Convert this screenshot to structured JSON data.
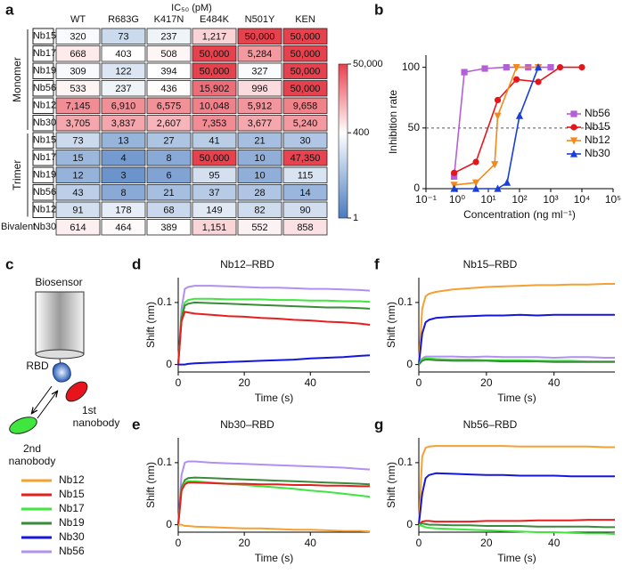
{
  "chart_data": [
    {
      "type": "heatmap",
      "panel_label": "a",
      "title": "IC₅₀ (pM)",
      "columns": [
        "WT",
        "R683G",
        "K417N",
        "E484K",
        "N501Y",
        "KEN"
      ],
      "row_labels": [
        "Nb15",
        "Nb17",
        "Nb19",
        "Nb56",
        "Nb12",
        "Nb30",
        "Nb15",
        "Nb17",
        "Nb19",
        "Nb56",
        "Nb12",
        "Nb30"
      ],
      "row_groups": [
        "Monomer",
        "Monomer",
        "Monomer",
        "Monomer",
        "Monomer",
        "Monomer",
        "Trimer",
        "Trimer",
        "Trimer",
        "Trimer",
        "Trimer",
        "Bivalent"
      ],
      "values": [
        [
          320,
          73,
          237,
          1217,
          50000,
          50000
        ],
        [
          668,
          403,
          508,
          50000,
          5284,
          50000
        ],
        [
          309,
          122,
          394,
          50000,
          327,
          50000
        ],
        [
          533,
          237,
          436,
          15902,
          996,
          50000
        ],
        [
          7145,
          6910,
          6575,
          10048,
          5912,
          9658
        ],
        [
          3705,
          3837,
          2607,
          7353,
          3677,
          5240
        ],
        [
          73,
          13,
          27,
          41,
          21,
          30
        ],
        [
          15,
          4,
          8,
          50000,
          10,
          47350
        ],
        [
          12,
          3,
          6,
          95,
          10,
          115
        ],
        [
          43,
          8,
          21,
          37,
          28,
          14
        ],
        [
          91,
          178,
          68,
          149,
          82,
          90
        ],
        [
          614,
          464,
          389,
          1151,
          552,
          858
        ]
      ],
      "value_labels": [
        [
          "320",
          "73",
          "237",
          "1,217",
          "50,000",
          "50,000"
        ],
        [
          "668",
          "403",
          "508",
          "50,000",
          "5,284",
          "50,000"
        ],
        [
          "309",
          "122",
          "394",
          "50,000",
          "327",
          "50,000"
        ],
        [
          "533",
          "237",
          "436",
          "15,902",
          "996",
          "50,000"
        ],
        [
          "7,145",
          "6,910",
          "6,575",
          "10,048",
          "5,912",
          "9,658"
        ],
        [
          "3,705",
          "3,837",
          "2,607",
          "7,353",
          "3,677",
          "5,240"
        ],
        [
          "73",
          "13",
          "27",
          "41",
          "21",
          "30"
        ],
        [
          "15",
          "4",
          "8",
          "50,000",
          "10",
          "47,350"
        ],
        [
          "12",
          "3",
          "6",
          "95",
          "10",
          "115"
        ],
        [
          "43",
          "8",
          "21",
          "37",
          "28",
          "14"
        ],
        [
          "91",
          "178",
          "68",
          "149",
          "82",
          "90"
        ],
        [
          "614",
          "464",
          "389",
          "1,151",
          "552",
          "858"
        ]
      ],
      "color_scale": {
        "log": true,
        "zlim": [
          1,
          50000
        ],
        "zcenter": 400,
        "colors": [
          "#4a7cc0",
          "#ffffff",
          "#e8414e"
        ],
        "ticks": [
          {
            "value": 50000,
            "label": "50,000"
          },
          400,
          1
        ]
      }
    },
    {
      "type": "line",
      "panel_label": "b",
      "xlabel": "Concentration (ng ml⁻¹)",
      "ylabel": "Inhibition rate",
      "xscale": "log",
      "xlim": [
        0.1,
        100000
      ],
      "ylim": [
        0,
        110
      ],
      "xticks": [
        {
          "value": 0.1,
          "label": "10⁻¹"
        },
        {
          "value": 1,
          "label": "10⁰"
        },
        {
          "value": 10,
          "label": "10¹"
        },
        {
          "value": 100,
          "label": "10²"
        },
        {
          "value": 1000,
          "label": "10³"
        },
        {
          "value": 10000,
          "label": "10⁴"
        },
        {
          "value": 100000,
          "label": "10⁵"
        }
      ],
      "yticks": [
        0,
        50,
        100
      ],
      "hline": 50,
      "legend": "right",
      "series": [
        {
          "name": "Nb56",
          "color": "#b35fd6",
          "marker": "square",
          "x": [
            0.8,
            1.7,
            7.7,
            38,
            190,
            1000
          ],
          "values": [
            10,
            96,
            99,
            100,
            100,
            100
          ]
        },
        {
          "name": "Nb15",
          "color": "#e4161c",
          "marker": "circle",
          "x": [
            0.8,
            4,
            20,
            80,
            400,
            2000,
            10000
          ],
          "values": [
            13,
            22,
            73,
            90,
            88,
            100,
            100
          ]
        },
        {
          "name": "Nb12",
          "color": "#f28a1a",
          "marker": "triangle-down",
          "x": [
            0.8,
            4,
            16,
            20,
            80,
            400
          ],
          "values": [
            3,
            5,
            20,
            60,
            100,
            100
          ]
        },
        {
          "name": "Nb30",
          "color": "#1a3fd6",
          "marker": "triangle-up",
          "x": [
            0.8,
            4,
            20,
            40,
            100,
            400
          ],
          "values": [
            0,
            0,
            0,
            5,
            60,
            100
          ]
        }
      ]
    },
    {
      "type": "line",
      "panel_label": "d",
      "title": "Nb12–RBD",
      "xlabel": "Time (s)",
      "ylabel": "Shift (nm)",
      "xlim": [
        0,
        58
      ],
      "ylim": [
        -0.012,
        0.14
      ],
      "xticks": [
        0,
        20,
        40
      ],
      "yticks": [
        0,
        0.1
      ],
      "x": [
        0,
        1,
        2,
        3,
        5,
        10,
        15,
        20,
        25,
        30,
        35,
        40,
        45,
        50,
        55,
        58
      ],
      "series": [
        {
          "name": "Nb56",
          "color": "#b090f0",
          "values": [
            0,
            0.09,
            0.122,
            0.125,
            0.127,
            0.127,
            0.126,
            0.125,
            0.124,
            0.124,
            0.123,
            0.122,
            0.122,
            0.121,
            0.12,
            0.119
          ]
        },
        {
          "name": "Nb17",
          "color": "#3ee63e",
          "values": [
            0,
            0.08,
            0.1,
            0.104,
            0.106,
            0.106,
            0.105,
            0.105,
            0.105,
            0.104,
            0.104,
            0.103,
            0.103,
            0.102,
            0.102,
            0.101
          ]
        },
        {
          "name": "Nb19",
          "color": "#3a8a3a",
          "values": [
            0,
            0.075,
            0.095,
            0.098,
            0.1,
            0.099,
            0.098,
            0.097,
            0.096,
            0.095,
            0.094,
            0.093,
            0.092,
            0.092,
            0.091,
            0.09
          ]
        },
        {
          "name": "Nb15",
          "color": "#e81e1e",
          "values": [
            0,
            0.07,
            0.085,
            0.084,
            0.082,
            0.08,
            0.078,
            0.077,
            0.075,
            0.074,
            0.072,
            0.071,
            0.069,
            0.068,
            0.066,
            0.064
          ]
        },
        {
          "name": "Nb30",
          "color": "#1515e0",
          "values": [
            0,
            0,
            0,
            0.001,
            0.002,
            0.003,
            0.004,
            0.005,
            0.006,
            0.007,
            0.008,
            0.01,
            0.011,
            0.012,
            0.014,
            0.015
          ]
        }
      ]
    },
    {
      "type": "line",
      "panel_label": "e",
      "title": "Nb30–RBD",
      "xlabel": "Time (s)",
      "ylabel": "Shift (nm)",
      "xlim": [
        0,
        58
      ],
      "ylim": [
        -0.012,
        0.14
      ],
      "xticks": [
        0,
        20,
        40
      ],
      "yticks": [
        0,
        0.1
      ],
      "x": [
        0,
        1,
        2,
        3,
        5,
        10,
        15,
        20,
        25,
        30,
        35,
        40,
        45,
        50,
        55,
        58
      ],
      "series": [
        {
          "name": "Nb56",
          "color": "#b090f0",
          "values": [
            0,
            0.08,
            0.1,
            0.102,
            0.102,
            0.1,
            0.099,
            0.098,
            0.097,
            0.096,
            0.095,
            0.094,
            0.093,
            0.092,
            0.09,
            0.089
          ]
        },
        {
          "name": "Nb19",
          "color": "#3a8a3a",
          "values": [
            0,
            0.06,
            0.072,
            0.075,
            0.076,
            0.075,
            0.074,
            0.073,
            0.072,
            0.071,
            0.07,
            0.069,
            0.068,
            0.067,
            0.066,
            0.065
          ]
        },
        {
          "name": "Nb17",
          "color": "#3ee63e",
          "values": [
            0,
            0.055,
            0.068,
            0.07,
            0.07,
            0.068,
            0.066,
            0.064,
            0.062,
            0.06,
            0.058,
            0.055,
            0.053,
            0.05,
            0.047,
            0.045
          ]
        },
        {
          "name": "Nb15",
          "color": "#e81e1e",
          "values": [
            0,
            0.055,
            0.065,
            0.068,
            0.068,
            0.067,
            0.066,
            0.066,
            0.065,
            0.065,
            0.064,
            0.064,
            0.063,
            0.063,
            0.062,
            0.062
          ]
        },
        {
          "name": "Nb12",
          "color": "#f5a030",
          "values": [
            0,
            0,
            -0.002,
            -0.002,
            -0.003,
            -0.004,
            -0.005,
            -0.006,
            -0.006,
            -0.007,
            -0.008,
            -0.008,
            -0.009,
            -0.01,
            -0.01,
            -0.011
          ]
        }
      ]
    },
    {
      "type": "line",
      "panel_label": "f",
      "title": "Nb15–RBD",
      "xlabel": "Time (s)",
      "ylabel": "Shift (nm)",
      "xlim": [
        0,
        58
      ],
      "ylim": [
        -0.012,
        0.14
      ],
      "xticks": [
        0,
        20,
        40
      ],
      "yticks": [
        0,
        0.1
      ],
      "x": [
        0,
        1,
        2,
        3,
        5,
        10,
        15,
        20,
        25,
        30,
        35,
        40,
        45,
        50,
        55,
        58
      ],
      "series": [
        {
          "name": "Nb12",
          "color": "#f5a030",
          "values": [
            0,
            0.09,
            0.11,
            0.114,
            0.117,
            0.121,
            0.123,
            0.125,
            0.126,
            0.127,
            0.128,
            0.128,
            0.129,
            0.129,
            0.13,
            0.13
          ]
        },
        {
          "name": "Nb30",
          "color": "#1515e0",
          "values": [
            0,
            0.05,
            0.068,
            0.072,
            0.075,
            0.077,
            0.078,
            0.079,
            0.079,
            0.08,
            0.079,
            0.08,
            0.08,
            0.08,
            0.08,
            0.08
          ]
        },
        {
          "name": "Nb56",
          "color": "#b090f0",
          "values": [
            0,
            0.01,
            0.013,
            0.013,
            0.013,
            0.013,
            0.012,
            0.013,
            0.012,
            0.012,
            0.012,
            0.011,
            0.012,
            0.012,
            0.011,
            0.011
          ]
        },
        {
          "name": "Nb17",
          "color": "#3ee63e",
          "values": [
            0,
            0.008,
            0.01,
            0.01,
            0.009,
            0.008,
            0.008,
            0.007,
            0.007,
            0.007,
            0.006,
            0.006,
            0.006,
            0.005,
            0.005,
            0.005
          ]
        },
        {
          "name": "Nb19",
          "color": "#3a8a3a",
          "values": [
            0,
            0.006,
            0.008,
            0.008,
            0.007,
            0.006,
            0.006,
            0.006,
            0.005,
            0.005,
            0.005,
            0.004,
            0.004,
            0.004,
            0.004,
            0.004
          ]
        }
      ]
    },
    {
      "type": "line",
      "panel_label": "g",
      "title": "Nb56–RBD",
      "xlabel": "Time (s)",
      "ylabel": "Shift (nm)",
      "xlim": [
        0,
        58
      ],
      "ylim": [
        -0.012,
        0.14
      ],
      "xticks": [
        0,
        20,
        40
      ],
      "yticks": [
        0,
        0.1
      ],
      "x": [
        0,
        1,
        2,
        3,
        5,
        10,
        15,
        20,
        25,
        30,
        35,
        40,
        45,
        50,
        55,
        58
      ],
      "series": [
        {
          "name": "Nb12",
          "color": "#f5a030",
          "values": [
            0,
            0.11,
            0.124,
            0.126,
            0.127,
            0.127,
            0.127,
            0.127,
            0.127,
            0.126,
            0.126,
            0.126,
            0.126,
            0.126,
            0.125,
            0.125
          ]
        },
        {
          "name": "Nb30",
          "color": "#1515e0",
          "values": [
            0,
            0.05,
            0.075,
            0.08,
            0.083,
            0.082,
            0.081,
            0.08,
            0.08,
            0.079,
            0.079,
            0.079,
            0.078,
            0.078,
            0.078,
            0.078
          ]
        },
        {
          "name": "Nb15",
          "color": "#e81e1e",
          "values": [
            0,
            0.005,
            0.006,
            0.006,
            0.005,
            0.005,
            0.005,
            0.006,
            0.006,
            0.006,
            0.007,
            0.007,
            0.007,
            0.008,
            0.008,
            0.008
          ]
        },
        {
          "name": "Nb19",
          "color": "#3a8a3a",
          "values": [
            0,
            0.002,
            0.001,
            0,
            0,
            -0.001,
            -0.001,
            -0.002,
            -0.002,
            -0.002,
            -0.003,
            -0.003,
            -0.003,
            -0.003,
            -0.004,
            -0.004
          ]
        },
        {
          "name": "Nb17",
          "color": "#3ee63e",
          "values": [
            0,
            -0.002,
            -0.004,
            -0.005,
            -0.006,
            -0.007,
            -0.008,
            -0.009,
            -0.01,
            -0.011,
            -0.012,
            -0.012,
            -0.013,
            -0.014,
            -0.014,
            -0.015
          ]
        }
      ]
    }
  ],
  "diagram": {
    "panel_label": "c",
    "biosensor": "Biosensor",
    "rbd": "RBD",
    "first_nanobody": [
      "1st",
      "nanobody"
    ],
    "second_nanobody": [
      "2nd",
      "nanobody"
    ]
  },
  "legend": [
    {
      "name": "Nb12",
      "color": "#f5a030"
    },
    {
      "name": "Nb15",
      "color": "#e81e1e"
    },
    {
      "name": "Nb17",
      "color": "#3ee63e"
    },
    {
      "name": "Nb19",
      "color": "#3a8a3a"
    },
    {
      "name": "Nb30",
      "color": "#1515e0"
    },
    {
      "name": "Nb56",
      "color": "#b090f0"
    }
  ]
}
